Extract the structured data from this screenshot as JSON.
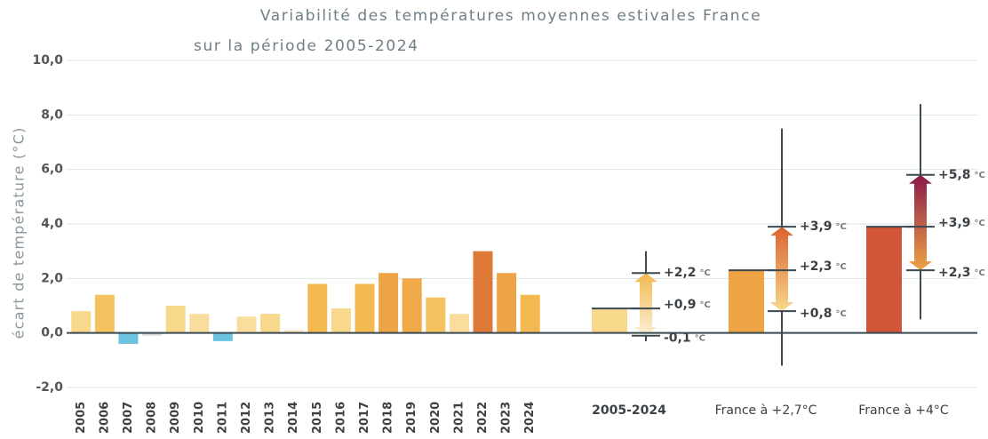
{
  "chart_data": {
    "type": "bar",
    "title": "Variabilité des températures moyennes estivales France",
    "subtitle": "sur la période 2005-2024",
    "y_label": "écart de température (°C)",
    "ylim": [
      -2,
      10
    ],
    "yticks": [
      {
        "value": -2,
        "label": "-2,0"
      },
      {
        "value": 0,
        "label": "0,0"
      },
      {
        "value": 2,
        "label": "2,0"
      },
      {
        "value": 4,
        "label": "4,0"
      },
      {
        "value": 6,
        "label": "6,0"
      },
      {
        "value": 8,
        "label": "8,0"
      },
      {
        "value": 10,
        "label": "10,0"
      }
    ],
    "grid": true,
    "categories": [
      "2005",
      "2006",
      "2007",
      "2008",
      "2009",
      "2010",
      "2011",
      "2012",
      "2013",
      "2014",
      "2015",
      "2016",
      "2017",
      "2018",
      "2019",
      "2020",
      "2021",
      "2022",
      "2023",
      "2024"
    ],
    "values": [
      0.8,
      1.4,
      -0.4,
      -0.1,
      1.0,
      0.7,
      -0.3,
      0.6,
      0.7,
      0.1,
      1.8,
      0.9,
      1.8,
      2.2,
      2.0,
      1.3,
      0.7,
      3.0,
      2.2,
      1.4
    ],
    "colors": [
      "#f8d88a",
      "#f5c260",
      "#6cc3df",
      "#d6dde0",
      "#f8d88a",
      "#f9dd9c",
      "#6cc3df",
      "#f9dd9c",
      "#f8d88a",
      "#fbe6bd",
      "#f3b84f",
      "#f8d88a",
      "#f3b84f",
      "#eea345",
      "#f0ab48",
      "#f5c260",
      "#f9dd9c",
      "#dd7a38",
      "#eea345",
      "#f3b84f"
    ],
    "unit": "°C",
    "scenarios": [
      {
        "name": "2005-2024",
        "value": 0.9,
        "color": "#f8d88a",
        "low": -0.1,
        "mid": 0.9,
        "high": 2.2,
        "value_labels": [
          "-0,1",
          "+0,9",
          "+2,2"
        ],
        "whisker": [
          -0.3,
          3.0
        ],
        "arrow_colors": [
          "#fbf0d8",
          "#f3b84f"
        ],
        "bold": true
      },
      {
        "name": "France à +2,7°C",
        "value": 2.3,
        "color": "#eea345",
        "low": 0.8,
        "mid": 2.3,
        "high": 3.9,
        "value_labels": [
          "+0,8",
          "+2,3",
          "+3,9"
        ],
        "whisker": [
          -1.2,
          7.5
        ],
        "arrow_colors": [
          "#f8d88a",
          "#d9622f"
        ],
        "bold": false
      },
      {
        "name": "France à +4°C",
        "value": 3.9,
        "color": "#d2553a",
        "low": 2.3,
        "mid": 3.9,
        "high": 5.8,
        "value_labels": [
          "+2,3",
          "+3,9",
          "+5,8"
        ],
        "whisker": [
          0.5,
          8.4
        ],
        "arrow_colors": [
          "#eea345",
          "#8a1a4a"
        ],
        "bold": false
      }
    ]
  }
}
